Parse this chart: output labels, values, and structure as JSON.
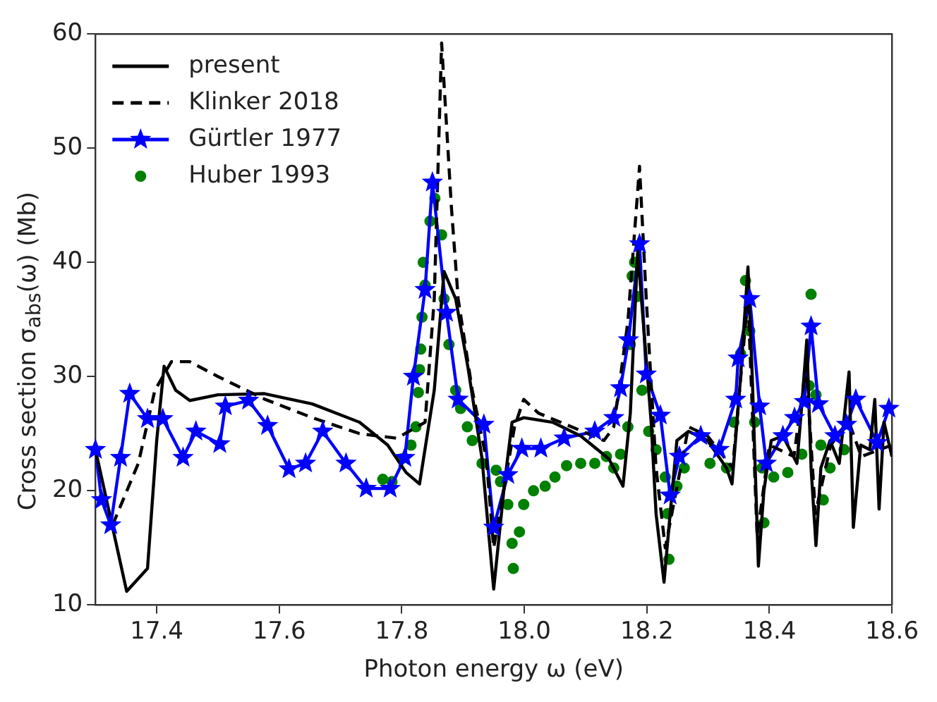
{
  "chart_data": {
    "type": "line",
    "xlabel": "Photon energy ω (eV)",
    "ylabel": "Cross section σ$_{abs}$(ω) (Mb)",
    "xlim": [
      17.3,
      18.6
    ],
    "xticks": [
      17.4,
      17.6,
      17.8,
      {
        "value": 18,
        "label": "18.0"
      },
      18.2,
      18.4,
      18.6
    ],
    "ylim": [
      10,
      60
    ],
    "yticks": [
      10,
      20,
      30,
      40,
      50,
      60
    ],
    "grid": false,
    "legend": "top left",
    "series": [
      {
        "name": "present",
        "type": "line",
        "color": "#000000",
        "marker": "none",
        "line_style": "solid",
        "x": [
          17.3,
          17.351,
          17.385,
          17.4,
          17.412,
          17.431,
          17.454,
          17.5,
          17.576,
          17.654,
          17.731,
          17.777,
          17.807,
          17.829,
          17.853,
          17.869,
          17.888,
          17.908,
          17.931,
          17.95,
          17.968,
          17.98,
          17.999,
          18.046,
          18.092,
          18.138,
          18.161,
          18.173,
          18.185,
          18.207,
          18.215,
          18.228,
          18.238,
          18.249,
          18.268,
          18.299,
          18.33,
          18.339,
          18.353,
          18.365,
          18.372,
          18.382,
          18.391,
          18.403,
          18.422,
          18.445,
          18.453,
          18.461,
          18.468,
          18.476,
          18.484,
          18.499,
          18.514,
          18.53,
          18.537,
          18.549,
          18.564,
          18.572,
          18.579,
          18.587,
          18.6
        ],
        "values": [
          23.6,
          11.2,
          13.2,
          24.4,
          30.9,
          28.8,
          27.9,
          28.4,
          28.5,
          27.6,
          26,
          24,
          21.6,
          20.6,
          28.8,
          39.2,
          36.8,
          30.8,
          22.8,
          11.4,
          20.8,
          26,
          26.4,
          26,
          24.8,
          22.8,
          20.4,
          26.8,
          41,
          26,
          18,
          12,
          18,
          24.4,
          25.2,
          24.4,
          22,
          20.6,
          30,
          39.6,
          30,
          13.4,
          20,
          24.4,
          24.8,
          22.4,
          27.6,
          33.2,
          22,
          15.2,
          22,
          24.4,
          22.4,
          30.4,
          16.8,
          24,
          23.6,
          28,
          18.4,
          26,
          23
        ]
      },
      {
        "name": "Klinker 2018",
        "type": "line",
        "color": "#000000",
        "marker": "none",
        "line_style": "dashed",
        "x": [
          17.328,
          17.37,
          17.397,
          17.424,
          17.454,
          17.5,
          17.577,
          17.654,
          17.731,
          17.792,
          17.838,
          17.853,
          17.865,
          17.881,
          17.892,
          17.915,
          17.938,
          17.95,
          17.984,
          17.999,
          18.023,
          18.077,
          18.13,
          18.146,
          18.169,
          18.188,
          18.199,
          18.215,
          18.23,
          18.268,
          18.299,
          18.34,
          18.365,
          18.38,
          18.4,
          18.44,
          18.46,
          18.475,
          18.5,
          18.53,
          18.55,
          18.6
        ],
        "values": [
          17,
          22.4,
          28.8,
          31.3,
          31.3,
          30,
          28,
          26.4,
          25,
          24.6,
          26,
          36.8,
          59.2,
          44.8,
          36.8,
          28.8,
          22.8,
          15,
          25.6,
          28,
          26.8,
          25.6,
          24.4,
          25.6,
          34.8,
          48.4,
          36.8,
          22,
          15,
          25.6,
          24.8,
          22,
          37,
          16,
          24,
          23,
          31,
          18,
          24,
          26,
          23,
          24
        ]
      },
      {
        "name": "Gürtler 1977",
        "type": "line",
        "color": "#0000ff",
        "marker": "star",
        "line_style": "solid",
        "x": [
          17.3,
          17.31,
          17.325,
          17.341,
          17.356,
          17.385,
          17.41,
          17.443,
          17.464,
          17.503,
          17.512,
          17.55,
          17.581,
          17.616,
          17.643,
          17.671,
          17.709,
          17.742,
          17.781,
          17.805,
          17.819,
          17.838,
          17.85,
          17.873,
          17.892,
          17.934,
          17.95,
          17.973,
          17.996,
          18.027,
          18.065,
          18.115,
          18.146,
          18.157,
          18.17,
          18.188,
          18.199,
          18.222,
          18.238,
          18.253,
          18.288,
          18.318,
          18.345,
          18.349,
          18.368,
          18.384,
          18.395,
          18.422,
          18.441,
          18.457,
          18.468,
          18.48,
          18.507,
          18.526,
          18.541,
          18.576,
          18.595
        ],
        "values": [
          23.6,
          19.2,
          17,
          22.9,
          28.5,
          26.3,
          26.3,
          22.9,
          25.2,
          24.1,
          27.4,
          27.9,
          25.7,
          21.9,
          22.4,
          25.2,
          22.4,
          20.2,
          20.2,
          22.9,
          30,
          37.6,
          47,
          35.6,
          28,
          25.8,
          16.8,
          21.4,
          23.7,
          23.7,
          24.6,
          25.2,
          26.4,
          29,
          33.2,
          41.6,
          30.2,
          26.6,
          19.6,
          23,
          24.8,
          23.6,
          28,
          31.6,
          36.8,
          27.4,
          22.4,
          24.8,
          26.4,
          27.8,
          34.4,
          27.6,
          24.8,
          25.8,
          28,
          24.2,
          27.2
        ]
      },
      {
        "name": "Huber 1993",
        "type": "scatter",
        "color": "#008000",
        "marker": "circle",
        "x": [
          17.769,
          17.784,
          17.8,
          17.815,
          17.823,
          17.827,
          17.829,
          17.831,
          17.833,
          17.835,
          17.838,
          17.846,
          17.854,
          17.865,
          17.869,
          17.877,
          17.888,
          17.896,
          17.907,
          17.915,
          17.931,
          17.954,
          17.961,
          17.973,
          17.98,
          17.982,
          17.992,
          17.999,
          18.015,
          18.034,
          18.05,
          18.069,
          18.092,
          18.115,
          18.134,
          18.146,
          18.157,
          18.169,
          18.173,
          18.176,
          18.18,
          18.184,
          18.192,
          18.203,
          18.215,
          18.23,
          18.234,
          18.236,
          18.249,
          18.261,
          18.303,
          18.33,
          18.342,
          18.353,
          18.361,
          18.368,
          18.376,
          18.388,
          18.391,
          18.407,
          18.43,
          18.453,
          18.465,
          18.468,
          18.476,
          18.484,
          18.488,
          18.499,
          18.522
        ],
        "values": [
          21,
          20.8,
          22.8,
          24,
          25.6,
          28.6,
          30.6,
          32.4,
          35.2,
          40,
          38,
          43.6,
          45.6,
          42.4,
          36.8,
          32.8,
          28.8,
          27.2,
          25.6,
          24.4,
          22.4,
          21.8,
          20.8,
          18.8,
          15.4,
          13.2,
          16.4,
          18.8,
          20,
          20.4,
          21.2,
          22.2,
          22.4,
          22.4,
          23,
          22,
          23.2,
          25.6,
          32.8,
          38.8,
          40,
          37,
          28.8,
          25.2,
          23.6,
          21.2,
          18,
          14,
          20.4,
          22,
          22.4,
          22,
          26,
          32,
          38.4,
          34,
          26,
          22,
          17.2,
          21.2,
          21.6,
          23.2,
          29.2,
          37.2,
          28.4,
          24,
          19.2,
          22,
          23.6
        ]
      }
    ]
  }
}
